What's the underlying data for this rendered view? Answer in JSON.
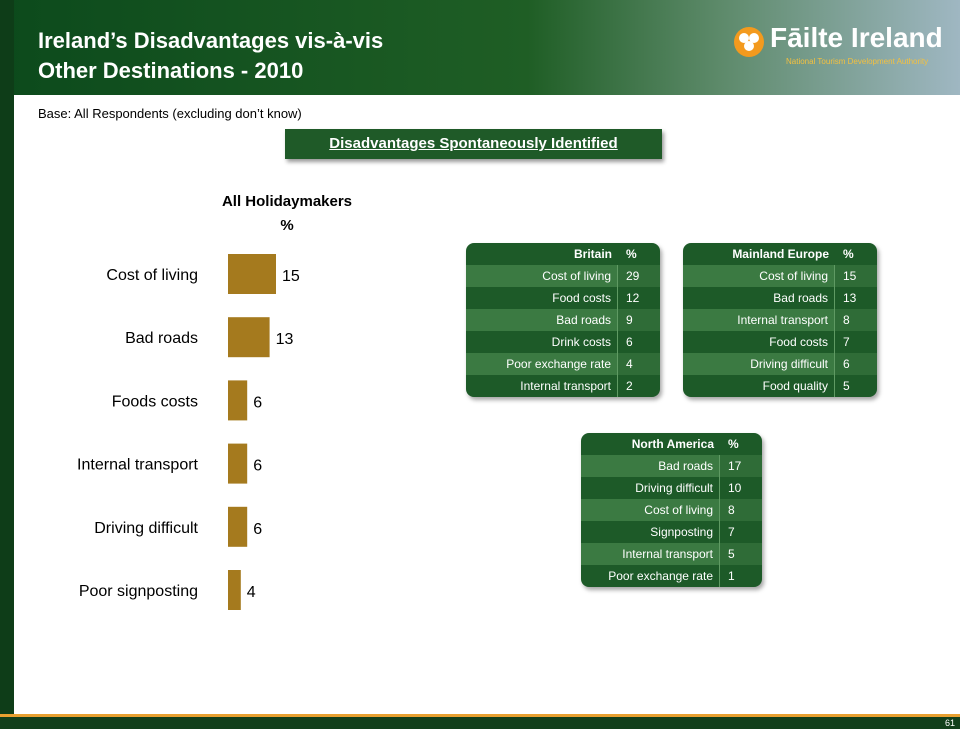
{
  "header": {
    "title_line1": "Ireland’s Disadvantages vis-à-vis",
    "title_line2": "Other Destinations - 2010"
  },
  "logo": {
    "name": "Fāilte Ireland",
    "tagline": "National Tourism Development Authority"
  },
  "base": "Base: All Respondents (excluding don’t know)",
  "section_title": "Disadvantages Spontaneously Identified",
  "chart_data": {
    "type": "bar",
    "title": "All Holidaymakers",
    "subtitle": "%",
    "categories": [
      "Cost of living",
      "Bad roads",
      "Foods costs",
      "Internal transport",
      "Driving difficult",
      "Poor signposting"
    ],
    "values": [
      15,
      13,
      6,
      6,
      6,
      4
    ],
    "color": "#a57a1e"
  },
  "tables": [
    {
      "columns": [
        "Britain",
        "%"
      ],
      "rows": [
        [
          "Cost of living",
          29
        ],
        [
          "Food costs",
          12
        ],
        [
          "Bad roads",
          9
        ],
        [
          "Drink costs",
          6
        ],
        [
          "Poor exchange rate",
          4
        ],
        [
          "Internal transport",
          2
        ]
      ]
    },
    {
      "columns": [
        "Mainland Europe",
        "%"
      ],
      "rows": [
        [
          "Cost of living",
          15
        ],
        [
          "Bad roads",
          13
        ],
        [
          "Internal transport",
          8
        ],
        [
          "Food costs",
          7
        ],
        [
          "Driving difficult",
          6
        ],
        [
          "Food quality",
          5
        ]
      ]
    },
    {
      "columns": [
        "North America",
        "%"
      ],
      "rows": [
        [
          "Bad roads",
          17
        ],
        [
          "Driving difficult",
          10
        ],
        [
          "Cost of living",
          8
        ],
        [
          "Signposting",
          7
        ],
        [
          "Internal transport",
          5
        ],
        [
          "Poor exchange rate",
          1
        ]
      ]
    }
  ],
  "page_number": "61"
}
